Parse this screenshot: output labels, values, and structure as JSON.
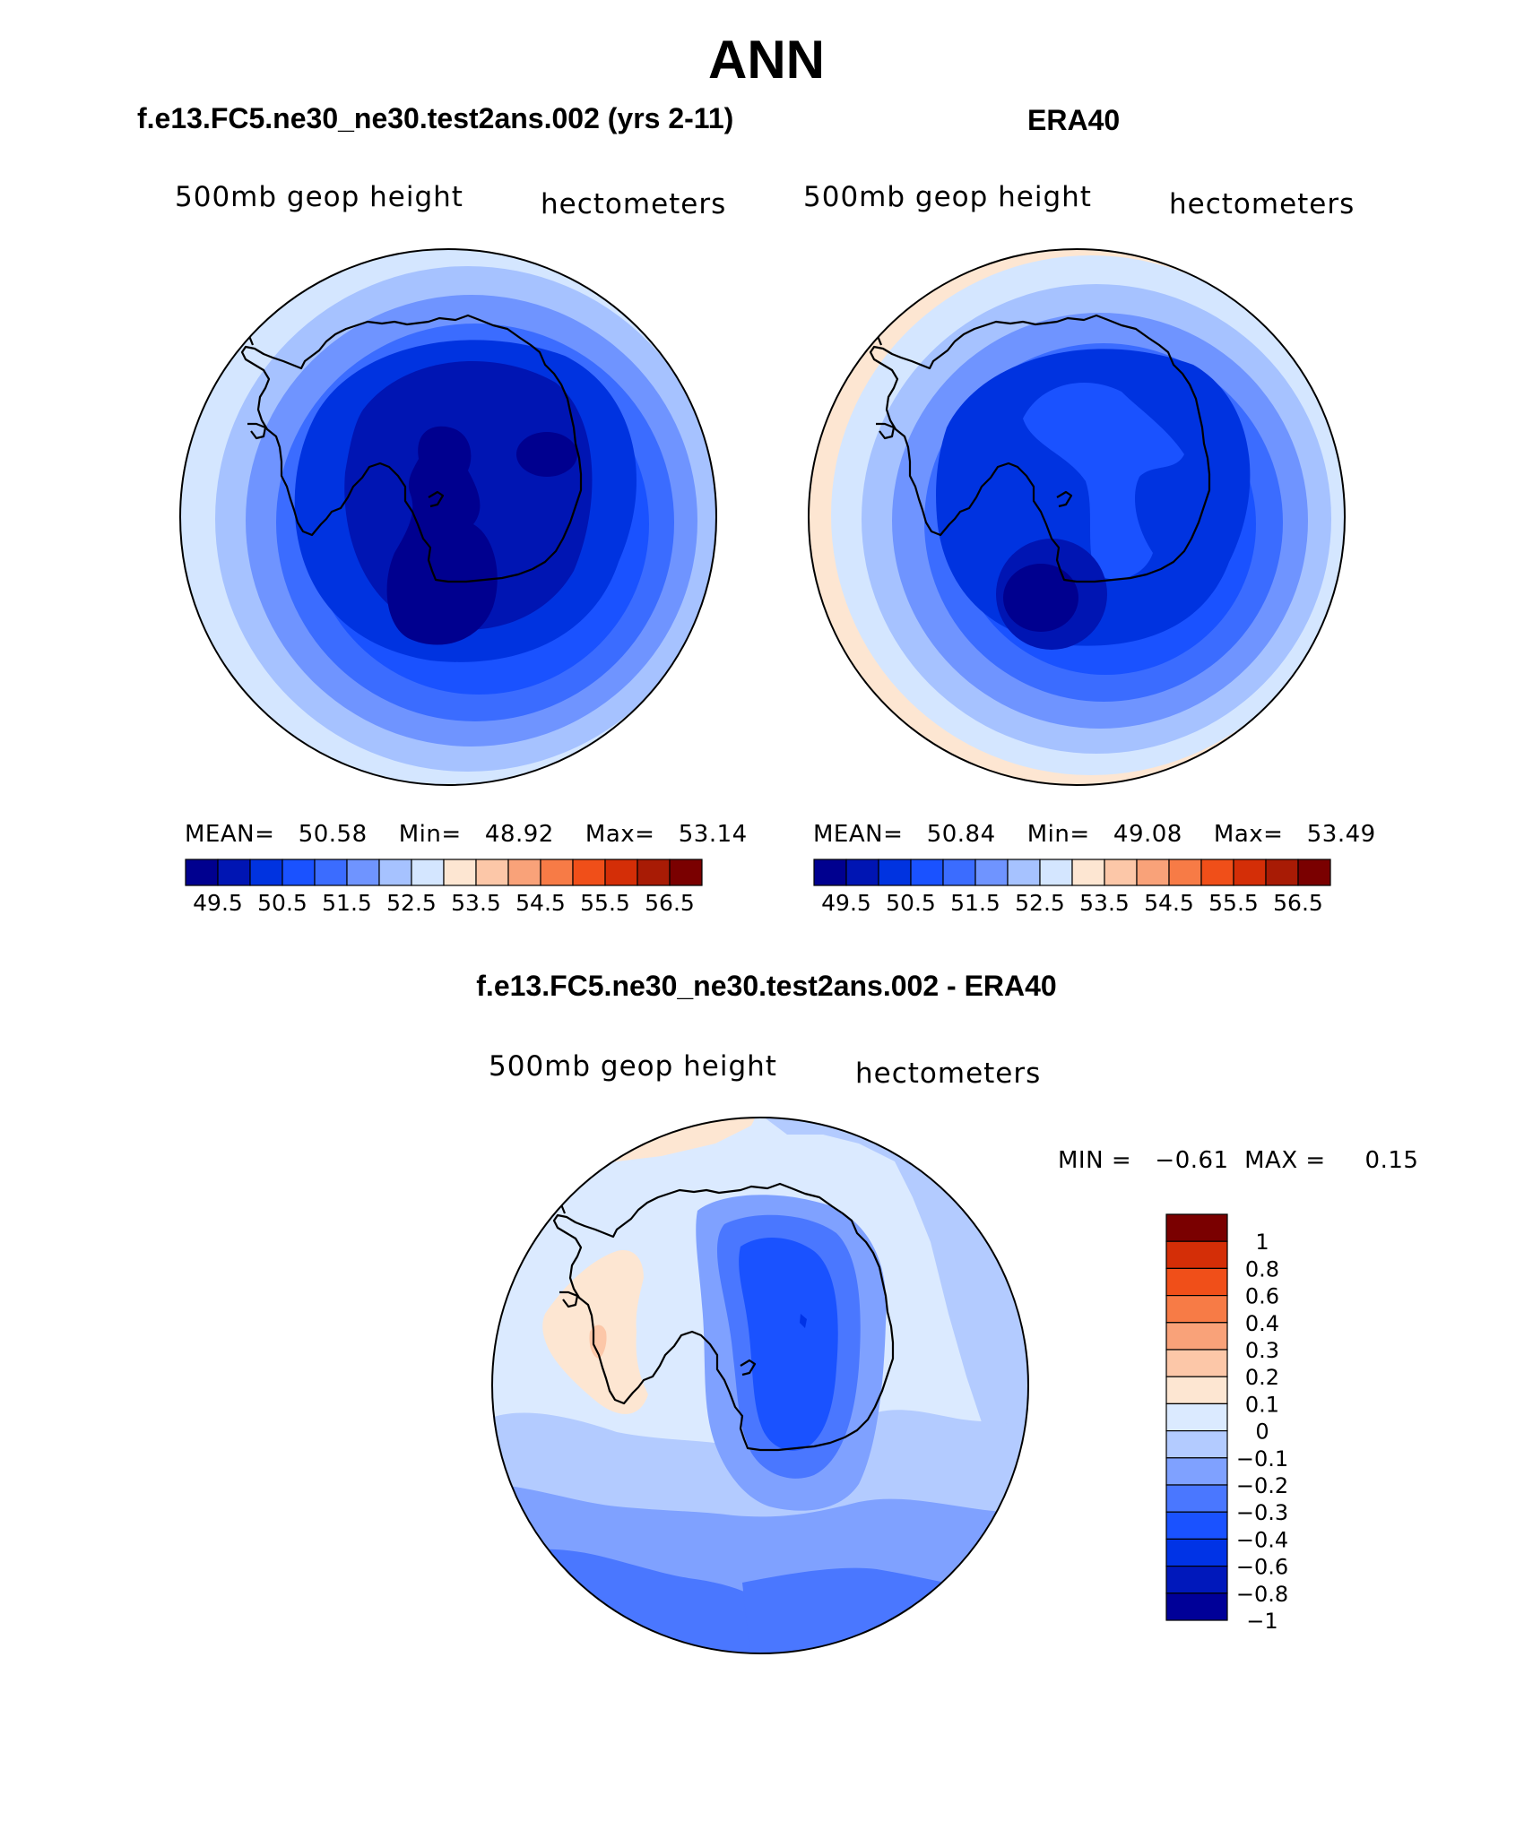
{
  "title": "ANN",
  "colors": {
    "abs_scale": [
      "#00008f",
      "#0015b3",
      "#0033e0",
      "#1a52ff",
      "#3b6cff",
      "#6f94ff",
      "#a6c2ff",
      "#d4e6ff",
      "#fde6d2",
      "#fcc7a8",
      "#f9a279",
      "#f77b46",
      "#f04f19",
      "#d42e07",
      "#a81b05",
      "#7a0000"
    ],
    "diff_scale": [
      "#000098",
      "#0018bb",
      "#0033e6",
      "#1a52ff",
      "#4a77ff",
      "#7fa1ff",
      "#b3cbff",
      "#dbeaff",
      "#fde6d2",
      "#fcc7a8",
      "#f9a279",
      "#f77b46",
      "#f04f19",
      "#d42e07",
      "#7a0000"
    ],
    "coastline": "#000000"
  },
  "panels": {
    "model": {
      "title": "f.e13.FC5.ne30_ne30.test2ans.002 (yrs 2-11)",
      "variable": "500mb geop height",
      "units": "hectometers",
      "mean_label": "MEAN=",
      "mean": "50.58",
      "min_label": "Min=",
      "min": "48.92",
      "max_label": "Max=",
      "max": "53.14"
    },
    "obs": {
      "title": "ERA40",
      "variable": "500mb geop height",
      "units": "hectometers",
      "mean_label": "MEAN=",
      "mean": "50.84",
      "min_label": "Min=",
      "min": "49.08",
      "max_label": "Max=",
      "max": "53.49"
    },
    "diff": {
      "title": "f.e13.FC5.ne30_ne30.test2ans.002 - ERA40",
      "variable": "500mb geop height",
      "units": "hectometers",
      "min_label": "MIN =",
      "min": "−0.61",
      "max_label": "MAX =",
      "max": "0.15"
    }
  },
  "chart_data": [
    {
      "type": "heatmap",
      "projection": "south-polar-stereographic",
      "title": "f.e13.FC5.ne30_ne30.test2ans.002 (yrs 2-11)",
      "field": "500mb geop height",
      "units": "hectometers",
      "mean": 50.58,
      "min": 48.92,
      "max": 53.14,
      "colorbar_levels": [
        49.5,
        50,
        50.5,
        51,
        51.5,
        52,
        52.5,
        53,
        53.5,
        54,
        54.5,
        55,
        55.5,
        56,
        56.5
      ],
      "colorbar_tick_labels": [
        "49.5",
        "50.5",
        "51.5",
        "52.5",
        "53.5",
        "54.5",
        "55.5",
        "56.5"
      ]
    },
    {
      "type": "heatmap",
      "projection": "south-polar-stereographic",
      "title": "ERA40",
      "field": "500mb geop height",
      "units": "hectometers",
      "mean": 50.84,
      "min": 49.08,
      "max": 53.49,
      "colorbar_levels": [
        49.5,
        50,
        50.5,
        51,
        51.5,
        52,
        52.5,
        53,
        53.5,
        54,
        54.5,
        55,
        55.5,
        56,
        56.5
      ],
      "colorbar_tick_labels": [
        "49.5",
        "50.5",
        "51.5",
        "52.5",
        "53.5",
        "54.5",
        "55.5",
        "56.5"
      ]
    },
    {
      "type": "heatmap",
      "projection": "south-polar-stereographic",
      "title": "f.e13.FC5.ne30_ne30.test2ans.002 - ERA40",
      "field": "500mb geop height",
      "units": "hectometers",
      "min": -0.61,
      "max": 0.15,
      "colorbar_levels": [
        1,
        0.8,
        0.6,
        0.4,
        0.3,
        0.2,
        0.1,
        0,
        -0.1,
        -0.2,
        -0.3,
        -0.4,
        -0.6,
        -0.8,
        -1
      ],
      "colorbar_tick_labels": [
        "1",
        "0.8",
        "0.6",
        "0.4",
        "0.3",
        "0.2",
        "0.1",
        "0",
        "−0.1",
        "−0.2",
        "−0.3",
        "−0.4",
        "−0.6",
        "−0.8",
        "−1"
      ]
    }
  ]
}
